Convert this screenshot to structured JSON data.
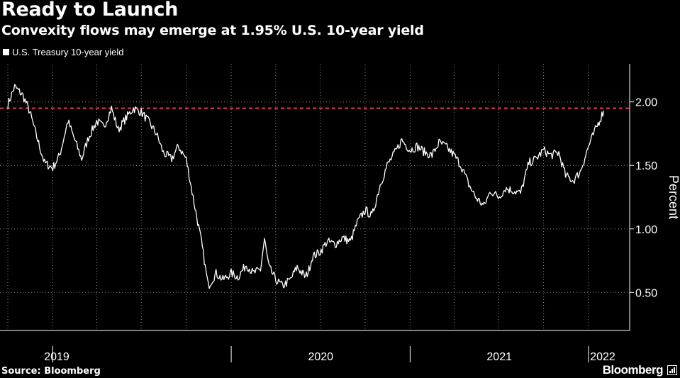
{
  "header": {
    "title": "Ready to Launch",
    "subtitle": "Convexity flows may emerge at 1.95% U.S. 10-year yield"
  },
  "footer": {
    "source": "Source: Bloomberg",
    "brand": "Bloomberg"
  },
  "colors": {
    "background": "#000000",
    "line": "#ffffff",
    "threshold": "#e8385a",
    "grid": "#888888"
  },
  "chart_data": {
    "type": "line",
    "title": "Ready to Launch",
    "subtitle": "Convexity flows may emerge at 1.95% U.S. 10-year yield",
    "ylabel": "Percent",
    "xlabel": "",
    "ylim": [
      0.2,
      2.3
    ],
    "yticks": [
      0.5,
      1.0,
      1.5,
      2.0
    ],
    "ytick_labels": [
      "0.50",
      "1.00",
      "1.50",
      "2.00"
    ],
    "x_year_labels": [
      "2019",
      "2020",
      "2021",
      "2022"
    ],
    "grid": true,
    "legend_position": "top-left",
    "threshold": {
      "value": 1.95,
      "style": "dashed"
    },
    "series": [
      {
        "name": "U.S. Treasury 10-year yield",
        "x": [
          "2018-10-01",
          "2018-10-15",
          "2018-11-01",
          "2018-11-15",
          "2018-12-01",
          "2018-12-15",
          "2019-01-01",
          "2019-01-15",
          "2019-02-01",
          "2019-02-15",
          "2019-03-01",
          "2019-03-15",
          "2019-04-01",
          "2019-04-15",
          "2019-05-01",
          "2019-05-15",
          "2019-06-01",
          "2019-06-15",
          "2019-07-01",
          "2019-07-15",
          "2019-08-01",
          "2019-08-15",
          "2019-09-01",
          "2019-09-15",
          "2019-10-01",
          "2019-10-15",
          "2019-11-01",
          "2019-11-15",
          "2019-12-01",
          "2019-12-15",
          "2020-01-01",
          "2020-01-15",
          "2020-02-01",
          "2020-02-15",
          "2020-03-01",
          "2020-03-09",
          "2020-03-18",
          "2020-04-01",
          "2020-04-15",
          "2020-05-01",
          "2020-05-15",
          "2020-06-01",
          "2020-06-08",
          "2020-06-15",
          "2020-07-01",
          "2020-07-15",
          "2020-08-01",
          "2020-08-15",
          "2020-09-01",
          "2020-09-15",
          "2020-10-01",
          "2020-10-15",
          "2020-11-01",
          "2020-11-15",
          "2020-12-01",
          "2020-12-15",
          "2021-01-01",
          "2021-01-15",
          "2021-02-01",
          "2021-02-15",
          "2021-03-01",
          "2021-03-15",
          "2021-04-01",
          "2021-04-15",
          "2021-05-01",
          "2021-05-15",
          "2021-06-01",
          "2021-06-15",
          "2021-07-01",
          "2021-07-15",
          "2021-08-01",
          "2021-08-15",
          "2021-09-01",
          "2021-09-15",
          "2021-10-01",
          "2021-10-15",
          "2021-11-01",
          "2021-11-15",
          "2021-12-01",
          "2021-12-15",
          "2022-01-01",
          "2022-01-15",
          "2022-02-01"
        ],
        "y": [
          1.98,
          2.12,
          2.05,
          1.92,
          1.7,
          1.52,
          1.48,
          1.58,
          1.85,
          1.7,
          1.55,
          1.72,
          1.85,
          1.8,
          1.95,
          1.78,
          1.88,
          1.95,
          1.92,
          1.85,
          1.75,
          1.6,
          1.55,
          1.65,
          1.55,
          1.25,
          0.9,
          0.55,
          0.65,
          0.6,
          0.65,
          0.62,
          0.72,
          0.65,
          0.68,
          0.92,
          0.7,
          0.6,
          0.55,
          0.6,
          0.7,
          0.62,
          0.68,
          0.78,
          0.82,
          0.9,
          0.88,
          0.93,
          0.9,
          1.05,
          1.15,
          1.1,
          1.35,
          1.5,
          1.6,
          1.7,
          1.62,
          1.65,
          1.6,
          1.58,
          1.68,
          1.65,
          1.58,
          1.5,
          1.35,
          1.25,
          1.18,
          1.3,
          1.25,
          1.32,
          1.3,
          1.28,
          1.52,
          1.55,
          1.62,
          1.58,
          1.6,
          1.42,
          1.38,
          1.45,
          1.65,
          1.78,
          1.93
        ]
      }
    ]
  }
}
